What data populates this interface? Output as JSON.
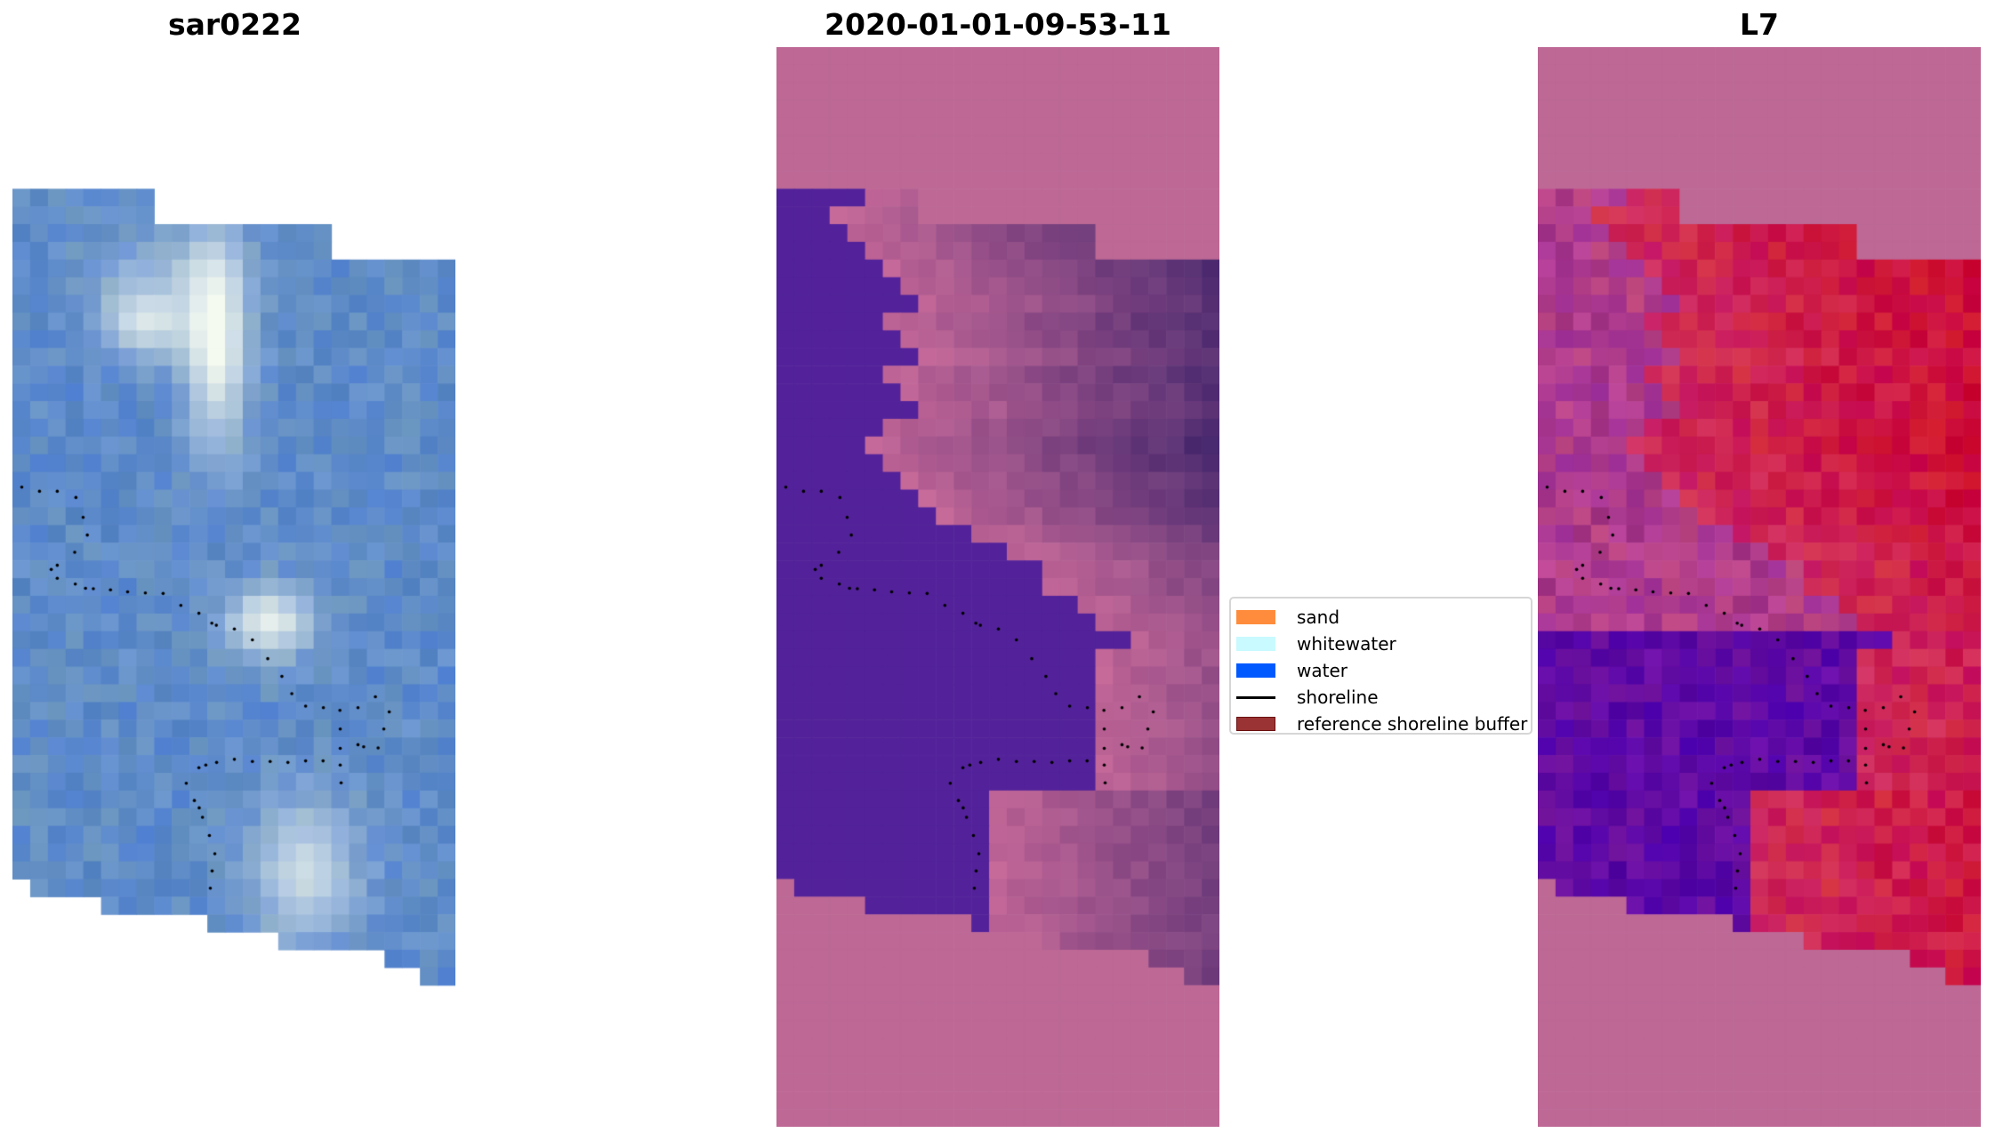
{
  "panels": [
    {
      "title": "sar0222",
      "kind": "rgb"
    },
    {
      "title": "2020-01-01-09-53-11",
      "kind": "classified"
    },
    {
      "title": "L7",
      "kind": "index"
    }
  ],
  "legend": {
    "items": [
      {
        "label": "sand",
        "color": "#ff8c3c",
        "type": "patch"
      },
      {
        "label": "whitewater",
        "color": "#c8faff",
        "type": "patch"
      },
      {
        "label": "water",
        "color": "#0059ff",
        "type": "patch"
      },
      {
        "label": "shoreline",
        "color": "#000000",
        "type": "line"
      },
      {
        "label": "reference shoreline buffer",
        "color": "#9a3333",
        "type": "patch"
      }
    ]
  },
  "colors": {
    "nodata": "#bd6895",
    "water_class": "#53229a",
    "index_low": "#5a0aa0",
    "index_high": "#c41a50"
  }
}
